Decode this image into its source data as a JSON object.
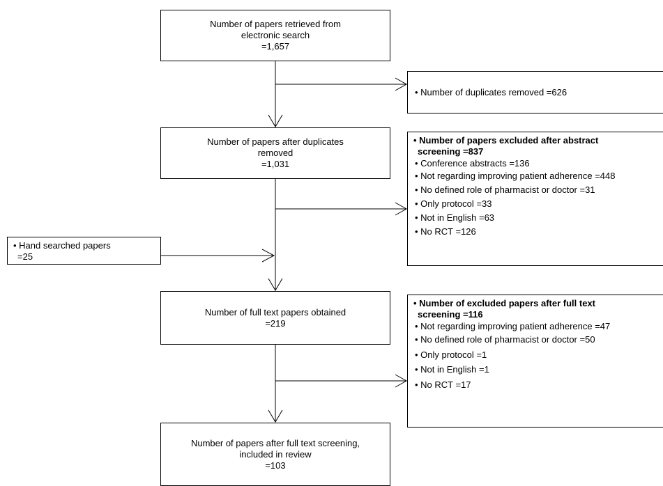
{
  "flow": {
    "retrieved": {
      "line1": "Number of papers retrieved from",
      "line2": "electronic search",
      "count": "=1,657"
    },
    "duplicates": {
      "text": "• Number of duplicates removed =626"
    },
    "after_duplicates": {
      "line1": "Number of papers after duplicates",
      "line2": "removed",
      "count": "=1,031"
    },
    "abstract_exclusion": {
      "heading_line1": "• Number of papers excluded after abstract",
      "heading_line2": "screening =837",
      "items": [
        "• Conference abstracts =136",
        "• Not regarding improving patient adherence =448",
        "• No defined role of pharmacist or doctor =31",
        "• Only protocol =33",
        "• Not in English =63",
        "• No RCT =126"
      ]
    },
    "hand_searched": {
      "line1": "• Hand searched papers",
      "line2": "=25"
    },
    "full_text": {
      "line1": "Number of full text papers obtained",
      "count": "=219"
    },
    "full_text_exclusion": {
      "heading_line1": "• Number of excluded papers after full text",
      "heading_line2": "screening =116",
      "items": [
        "• Not regarding improving patient adherence =47",
        "• No defined role of pharmacist or doctor =50",
        "• Only protocol =1",
        "• Not in English =1",
        "• No RCT =17"
      ]
    },
    "included": {
      "line1": "Number of papers after full text screening,",
      "line2": "included in review",
      "count": "=103"
    }
  }
}
